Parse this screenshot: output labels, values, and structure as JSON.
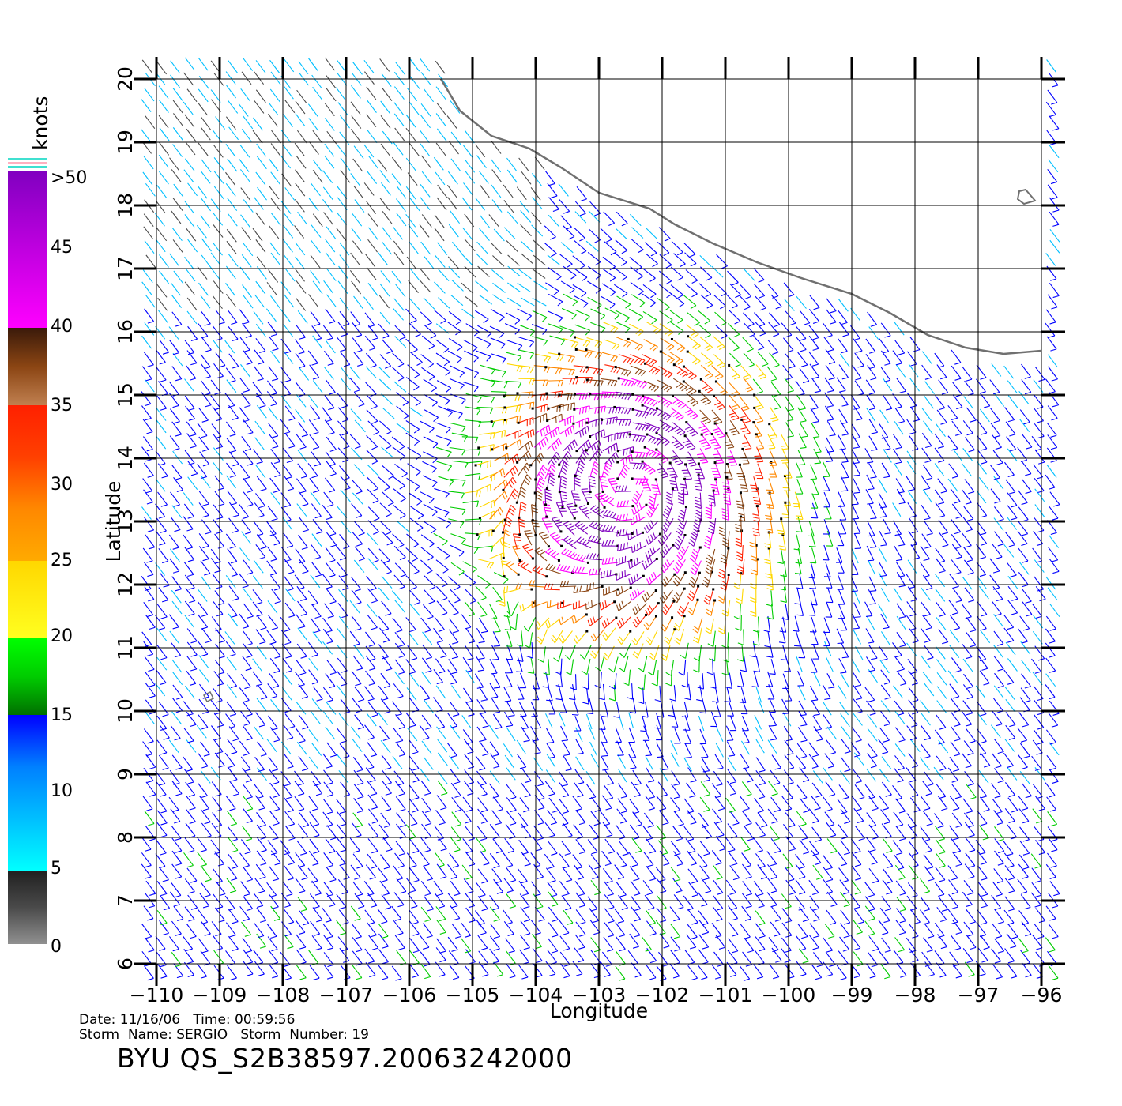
{
  "map": {
    "lon_range": [
      -110,
      -96
    ],
    "lat_range": [
      6,
      20
    ],
    "lon_ticks": [
      "−110",
      "−109",
      "−108",
      "−107",
      "−106",
      "−105",
      "−104",
      "−103",
      "−102",
      "−101",
      "−100",
      "−99",
      "−98",
      "−97",
      "−96"
    ],
    "lat_ticks": [
      "6",
      "7",
      "8",
      "9",
      "10",
      "11",
      "12",
      "13",
      "14",
      "15",
      "16",
      "17",
      "18",
      "19",
      "20"
    ],
    "xlabel": "Longitude",
    "ylabel": "Latitude",
    "grid": true,
    "feature": "wind barbs with Mexican coastline, storm center near 14N 102.5W",
    "storm_center": {
      "lon": -102.5,
      "lat": 13.6
    },
    "coastline": [
      [
        -105.5,
        20.0
      ],
      [
        -105.2,
        19.5
      ],
      [
        -104.7,
        19.1
      ],
      [
        -104.1,
        18.9
      ],
      [
        -103.6,
        18.6
      ],
      [
        -103.0,
        18.2
      ],
      [
        -102.2,
        17.95
      ],
      [
        -101.8,
        17.7
      ],
      [
        -101.2,
        17.4
      ],
      [
        -100.5,
        17.1
      ],
      [
        -99.8,
        16.85
      ],
      [
        -99.0,
        16.6
      ],
      [
        -98.4,
        16.3
      ],
      [
        -97.8,
        15.95
      ],
      [
        -97.2,
        15.75
      ],
      [
        -96.6,
        15.65
      ],
      [
        -96.0,
        15.7
      ]
    ]
  },
  "legend": {
    "title": "knots",
    "labels": [
      ">50",
      "45",
      "40",
      "35",
      "30",
      "25",
      "20",
      "15",
      "10",
      "5",
      "0"
    ],
    "colors": {
      "0-5": "#4a4a4a",
      "5-10": "#00bfff",
      "10-15": "#0000ff",
      "15-20": "#00cc00",
      "20-25": "#ffd700",
      "25-30": "#ff8800",
      "30-35": "#ff2000",
      "35-40": "#8b4513",
      "40-45": "#ff00ff",
      "45-50": "#8000c0",
      "gt50": "#40e0d0"
    }
  },
  "info": {
    "line1": "Date: 11/16/06   Time: 00:59:56",
    "line2": "Storm  Name: SERGIO   Storm  Number: 19",
    "title": "BYU  QS_S2B38597.20063242000"
  }
}
